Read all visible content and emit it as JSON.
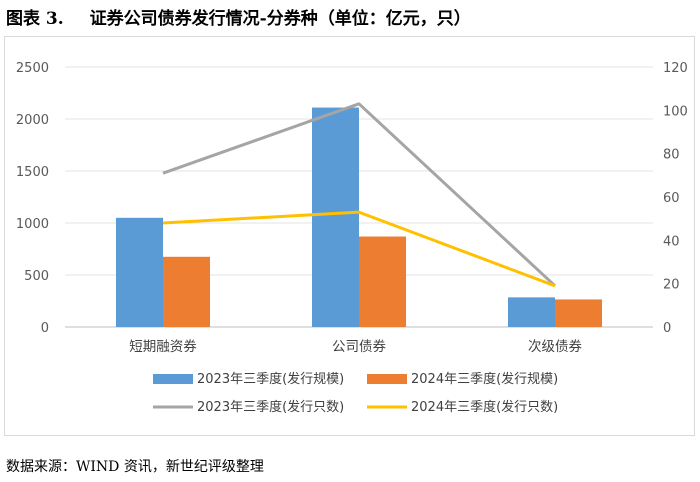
{
  "figure": {
    "number": "图表 3.",
    "title": "证券公司债券发行情况-分券种（单位：亿元，只）"
  },
  "source_note": "数据来源：WIND 资讯，新世纪评级整理",
  "chart_data": {
    "type": "bar",
    "categories": [
      "短期融资券",
      "公司债券",
      "次级债券"
    ],
    "y_left": {
      "ticks": [
        "0",
        "500",
        "1000",
        "1500",
        "2000",
        "2500"
      ],
      "ylim": [
        0,
        2500
      ]
    },
    "y_right": {
      "ticks": [
        "0",
        "20",
        "40",
        "60",
        "80",
        "100",
        "120"
      ],
      "ylim": [
        0,
        120
      ]
    },
    "grid": true,
    "legend_position": "bottom",
    "series": [
      {
        "name": "2023年三季度(发行规模)",
        "kind": "bar",
        "axis": "left",
        "color": "#5b9bd5",
        "values": [
          1050,
          2110,
          285
        ]
      },
      {
        "name": "2024年三季度(发行规模)",
        "kind": "bar",
        "axis": "left",
        "color": "#ed7d31",
        "values": [
          675,
          870,
          265
        ]
      },
      {
        "name": "2023年三季度(发行只数)",
        "kind": "line",
        "axis": "right",
        "color": "#a5a5a5",
        "values": [
          71,
          103,
          19
        ]
      },
      {
        "name": "2024年三季度(发行只数)",
        "kind": "line",
        "axis": "right",
        "color": "#ffc000",
        "values": [
          48,
          53,
          19
        ]
      }
    ]
  }
}
